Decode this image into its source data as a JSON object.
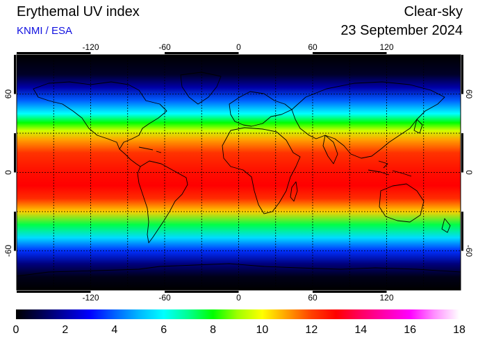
{
  "header": {
    "title": "Erythemal UV index",
    "source": "KNMI / ESA",
    "product": "Clear-sky",
    "date": "23 September 2024"
  },
  "map": {
    "projection": "equirectangular",
    "lon_range": [
      -180,
      180
    ],
    "lat_range": [
      -90,
      90
    ],
    "lon_ticks": [
      -120,
      -60,
      0,
      60,
      120
    ],
    "lat_ticks": [
      60,
      0,
      -60
    ],
    "lon_tick_labels": [
      "-120",
      "-60",
      "0",
      "60",
      "120"
    ],
    "lat_tick_labels": [
      "60",
      "0",
      "-60"
    ],
    "grid_lon_step": 30,
    "grid_lat_step": 30,
    "grid": true,
    "colors": {
      "ocean_background": "#000000",
      "coastline": "#000000",
      "gridline": "#000000"
    },
    "uv_profile": [
      {
        "lat": 90,
        "uv": 0
      },
      {
        "lat": 75,
        "uv": 0.5
      },
      {
        "lat": 65,
        "uv": 2
      },
      {
        "lat": 55,
        "uv": 4
      },
      {
        "lat": 45,
        "uv": 6
      },
      {
        "lat": 38,
        "uv": 8
      },
      {
        "lat": 32,
        "uv": 9.5
      },
      {
        "lat": 25,
        "uv": 11
      },
      {
        "lat": 15,
        "uv": 12.2
      },
      {
        "lat": 0,
        "uv": 12.8
      },
      {
        "lat": -10,
        "uv": 13
      },
      {
        "lat": -20,
        "uv": 12.3
      },
      {
        "lat": -30,
        "uv": 10.5
      },
      {
        "lat": -40,
        "uv": 7.5
      },
      {
        "lat": -50,
        "uv": 5.5
      },
      {
        "lat": -60,
        "uv": 3.5
      },
      {
        "lat": -70,
        "uv": 1.5
      },
      {
        "lat": -80,
        "uv": 0.3
      },
      {
        "lat": -90,
        "uv": 0
      }
    ]
  },
  "colorbar": {
    "min": 0,
    "max": 18,
    "ticks": [
      "0",
      "2",
      "4",
      "6",
      "8",
      "10",
      "12",
      "14",
      "16",
      "18"
    ],
    "stops": [
      {
        "v": 0,
        "c": "#000000"
      },
      {
        "v": 1,
        "c": "#000050"
      },
      {
        "v": 2,
        "c": "#0000a8"
      },
      {
        "v": 3,
        "c": "#0000ff"
      },
      {
        "v": 4,
        "c": "#0060ff"
      },
      {
        "v": 5,
        "c": "#00b8ff"
      },
      {
        "v": 6,
        "c": "#00ffff"
      },
      {
        "v": 7,
        "c": "#00ff90"
      },
      {
        "v": 8,
        "c": "#00ff00"
      },
      {
        "v": 9,
        "c": "#a0ff00"
      },
      {
        "v": 10,
        "c": "#ffff00"
      },
      {
        "v": 11,
        "c": "#ffa000"
      },
      {
        "v": 12,
        "c": "#ff4000"
      },
      {
        "v": 13,
        "c": "#ff0000"
      },
      {
        "v": 14,
        "c": "#ff0060"
      },
      {
        "v": 15,
        "c": "#ff00b0"
      },
      {
        "v": 16,
        "c": "#ff00ff"
      },
      {
        "v": 17,
        "c": "#ff90ff"
      },
      {
        "v": 18,
        "c": "#ffffff"
      }
    ]
  }
}
